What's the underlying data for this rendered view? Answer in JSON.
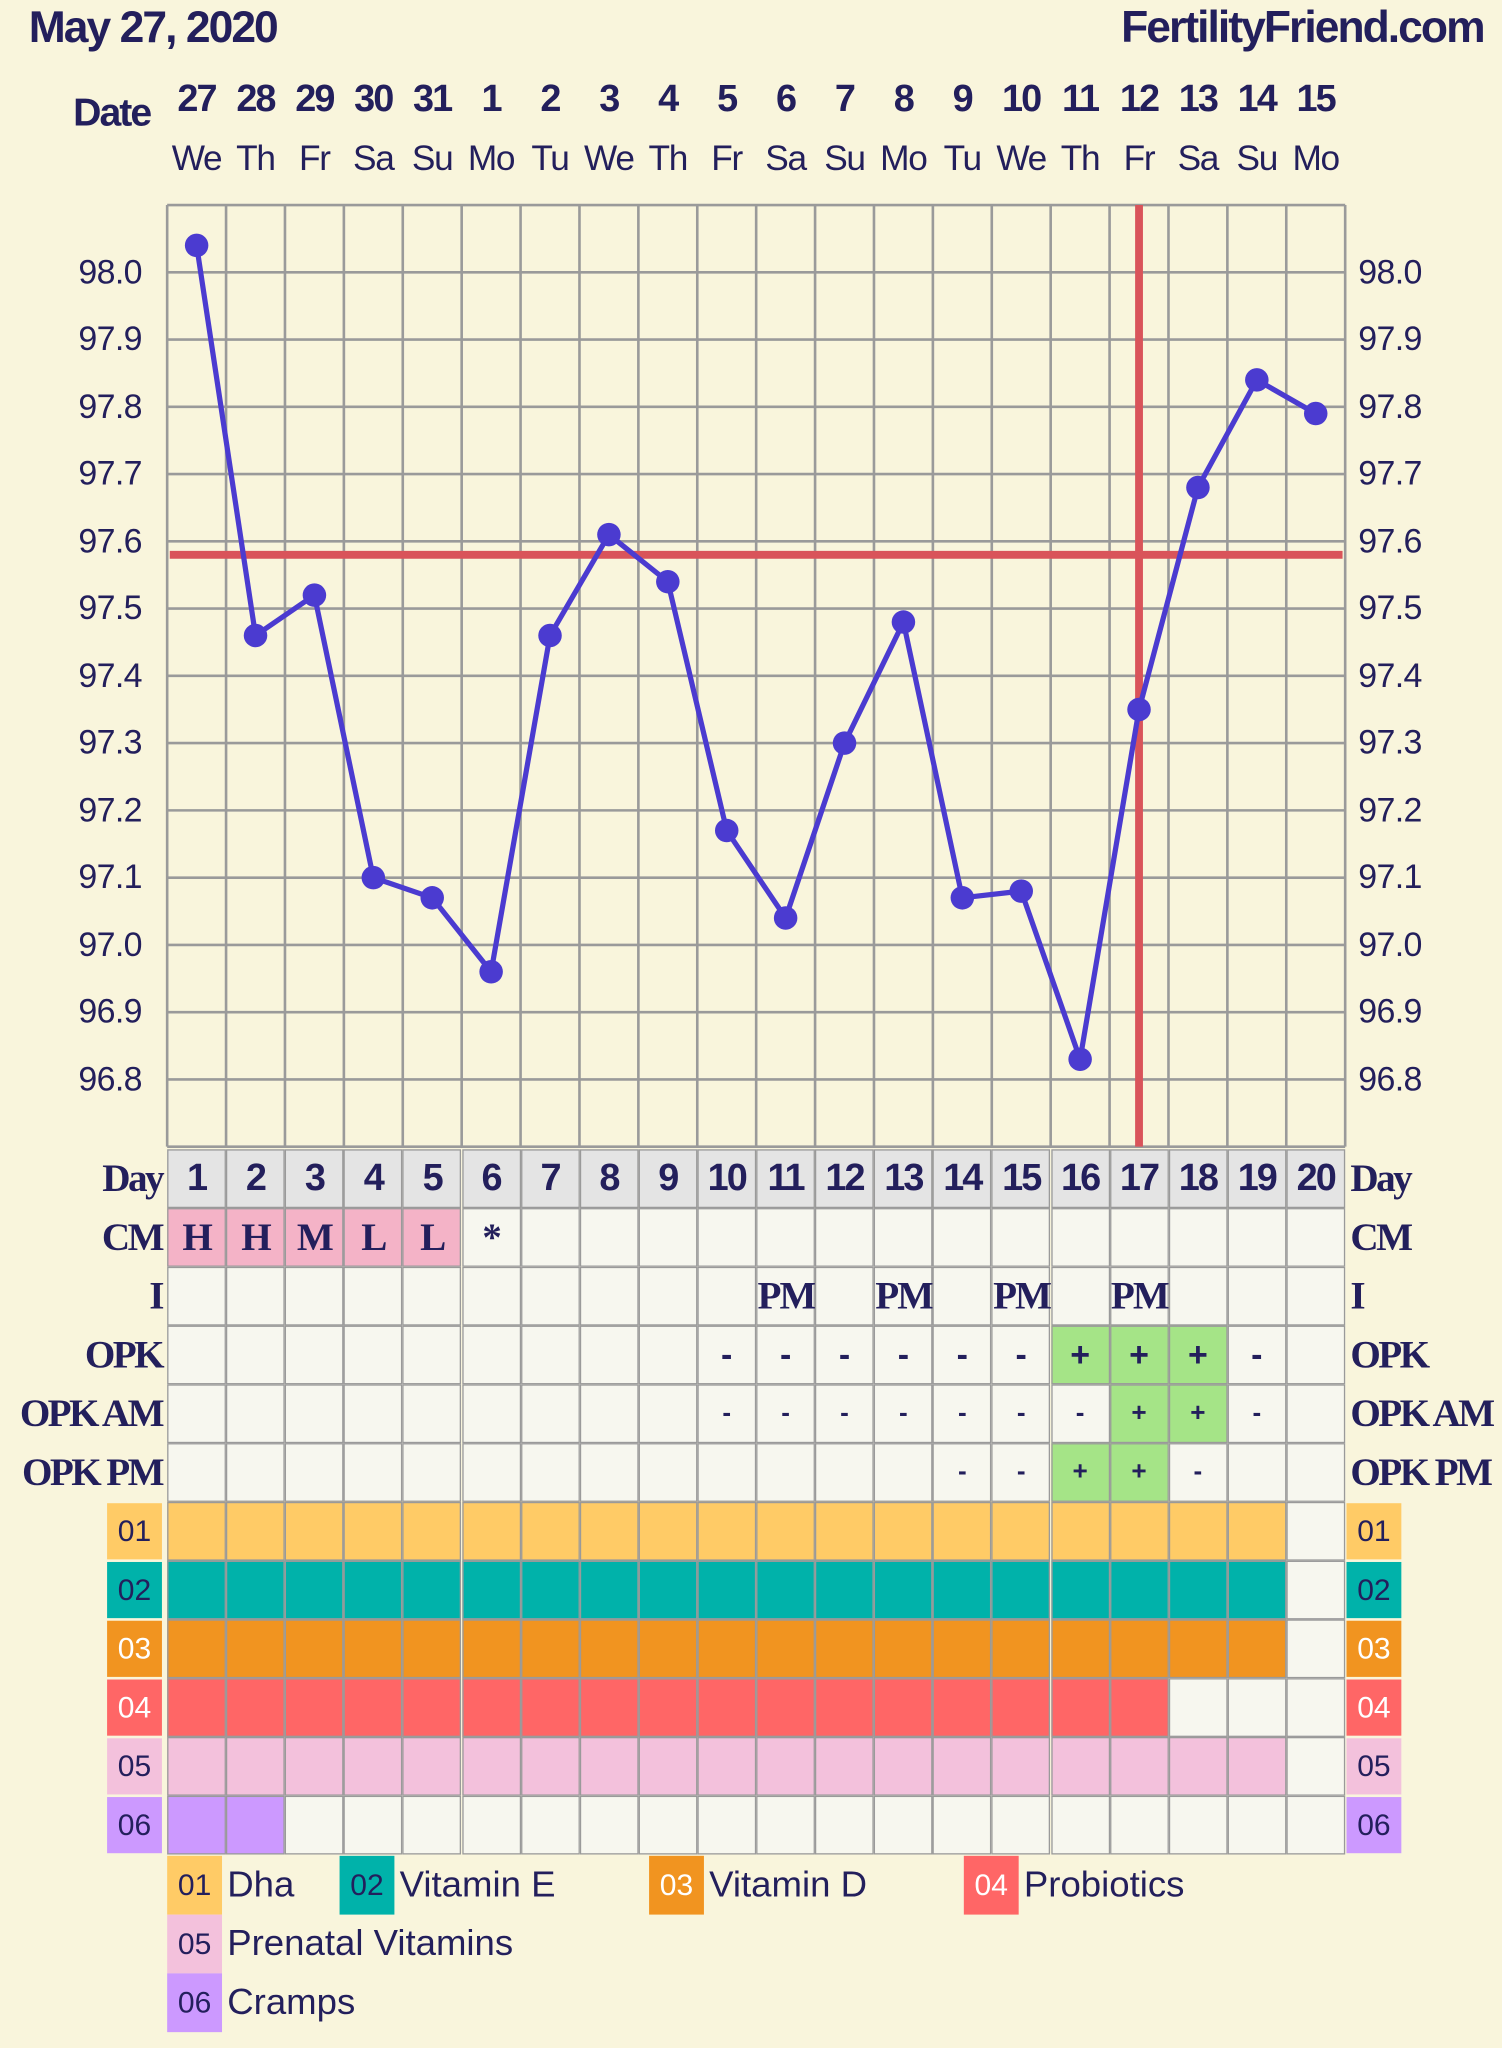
{
  "header": {
    "date_title": "May 27, 2020",
    "site": "FertilityFriend.com",
    "date_label": "Date"
  },
  "dates": [
    {
      "d": "27",
      "w": "We"
    },
    {
      "d": "28",
      "w": "Th"
    },
    {
      "d": "29",
      "w": "Fr"
    },
    {
      "d": "30",
      "w": "Sa"
    },
    {
      "d": "31",
      "w": "Su"
    },
    {
      "d": "1",
      "w": "Mo"
    },
    {
      "d": "2",
      "w": "Tu"
    },
    {
      "d": "3",
      "w": "We"
    },
    {
      "d": "4",
      "w": "Th"
    },
    {
      "d": "5",
      "w": "Fr"
    },
    {
      "d": "6",
      "w": "Sa"
    },
    {
      "d": "7",
      "w": "Su"
    },
    {
      "d": "8",
      "w": "Mo"
    },
    {
      "d": "9",
      "w": "Tu"
    },
    {
      "d": "10",
      "w": "We"
    },
    {
      "d": "11",
      "w": "Th"
    },
    {
      "d": "12",
      "w": "Fr"
    },
    {
      "d": "13",
      "w": "Sa"
    },
    {
      "d": "14",
      "w": "Su"
    },
    {
      "d": "15",
      "w": "Mo"
    }
  ],
  "chart_data": {
    "type": "line",
    "x": [
      1,
      2,
      3,
      4,
      5,
      6,
      7,
      8,
      9,
      10,
      11,
      12,
      13,
      14,
      15,
      16,
      17,
      18,
      19,
      20
    ],
    "y": [
      98.04,
      97.46,
      97.52,
      97.1,
      97.07,
      96.96,
      97.46,
      97.61,
      97.54,
      97.17,
      97.04,
      97.3,
      97.48,
      97.07,
      97.08,
      96.83,
      97.35,
      97.68,
      97.84,
      97.79
    ],
    "ylim": [
      96.7,
      98.1
    ],
    "y_ticks": [
      "98.0",
      "97.9",
      "97.8",
      "97.7",
      "97.6",
      "97.5",
      "97.4",
      "97.3",
      "97.2",
      "97.1",
      "97.0",
      "96.9",
      "96.8"
    ],
    "coverline": 97.58,
    "ovulation_day": 17,
    "grid": true,
    "colors": {
      "line": "#4b3bd0",
      "coverline": "#d9545a",
      "grid": "#9a9a9a"
    }
  },
  "rows": {
    "labels": {
      "day": "Day",
      "cm": "CM",
      "i": "I",
      "opk": "OPK",
      "opk_am": "OPK AM",
      "opk_pm": "OPK PM"
    },
    "day": [
      "1",
      "2",
      "3",
      "4",
      "5",
      "6",
      "7",
      "8",
      "9",
      "10",
      "11",
      "12",
      "13",
      "14",
      "15",
      "16",
      "17",
      "18",
      "19",
      "20"
    ],
    "cm": [
      "H",
      "H",
      "M",
      "L",
      "L",
      "*",
      "",
      "",
      "",
      "",
      "",
      "",
      "",
      "",
      "",
      "",
      "",
      "",
      "",
      ""
    ],
    "i": [
      "",
      "",
      "",
      "",
      "",
      "",
      "",
      "",
      "",
      "",
      "PM",
      "",
      "PM",
      "",
      "PM",
      "",
      "PM",
      "",
      "",
      ""
    ],
    "opk": [
      "",
      "",
      "",
      "",
      "",
      "",
      "",
      "",
      "",
      "-",
      "-",
      "-",
      "-",
      "-",
      "-",
      "+",
      "+",
      "+",
      "-",
      ""
    ],
    "opk_am": [
      "",
      "",
      "",
      "",
      "",
      "",
      "",
      "",
      "",
      "-",
      "-",
      "-",
      "-",
      "-",
      "-",
      "-",
      "+",
      "+",
      "-",
      ""
    ],
    "opk_pm": [
      "",
      "",
      "",
      "",
      "",
      "",
      "",
      "",
      "",
      "",
      "",
      "",
      "",
      "-",
      "-",
      "+",
      "+",
      "-",
      "",
      ""
    ]
  },
  "colors": {
    "cm_fill": "#f4b3c7",
    "opk_positive": "#a5e487",
    "cell": "#f7f7ef",
    "day_row": "#e4e4e4",
    "text": "#231f5c"
  },
  "supplements": [
    {
      "code": "01",
      "name": "Dha",
      "color": "#ffcb66",
      "text_color": "#231f5c",
      "days_marked": 19
    },
    {
      "code": "02",
      "name": "Vitamin E",
      "color": "#00b2aa",
      "text_color": "#231f5c",
      "days_marked": 19
    },
    {
      "code": "03",
      "name": "Vitamin D",
      "color": "#f19420",
      "text_color": "#ffffff",
      "days_marked": 19
    },
    {
      "code": "04",
      "name": "Probiotics",
      "color": "#ff6666",
      "text_color": "#ffffff",
      "days_marked": 17
    },
    {
      "code": "05",
      "name": "Prenatal Vitamins",
      "color": "#f3c1dc",
      "text_color": "#231f5c",
      "days_marked": 19
    },
    {
      "code": "06",
      "name": "Cramps",
      "color": "#cc99ff",
      "text_color": "#231f5c",
      "days_marked": 2
    }
  ]
}
